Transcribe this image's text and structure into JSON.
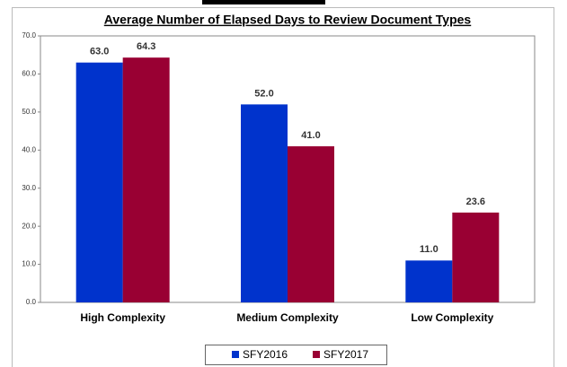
{
  "chart_data": {
    "type": "bar",
    "title": "Average Number of Elapsed Days to Review Document Types",
    "categories": [
      "High Complexity",
      "Medium Complexity",
      "Low Complexity"
    ],
    "series": [
      {
        "name": "SFY2016",
        "color": "#0033cc",
        "values": [
          63.0,
          52.0,
          11.0
        ],
        "value_labels": [
          "63.0",
          "52.0",
          "11.0"
        ]
      },
      {
        "name": "SFY2017",
        "color": "#990033",
        "values": [
          64.3,
          41.0,
          23.6
        ],
        "value_labels": [
          "64.3",
          "41.0",
          "23.6"
        ]
      }
    ],
    "ylim": [
      0,
      70
    ],
    "yticks": [
      {
        "value": 0,
        "label": "0.0"
      },
      {
        "value": 10,
        "label": "10.0"
      },
      {
        "value": 20,
        "label": "20.0"
      },
      {
        "value": 30,
        "label": "30.0"
      },
      {
        "value": 40,
        "label": "40.0"
      },
      {
        "value": 50,
        "label": "50.0"
      },
      {
        "value": 60,
        "label": "60.0"
      },
      {
        "value": 70,
        "label": "70.0"
      }
    ],
    "grid": false,
    "legend": "bottom"
  }
}
